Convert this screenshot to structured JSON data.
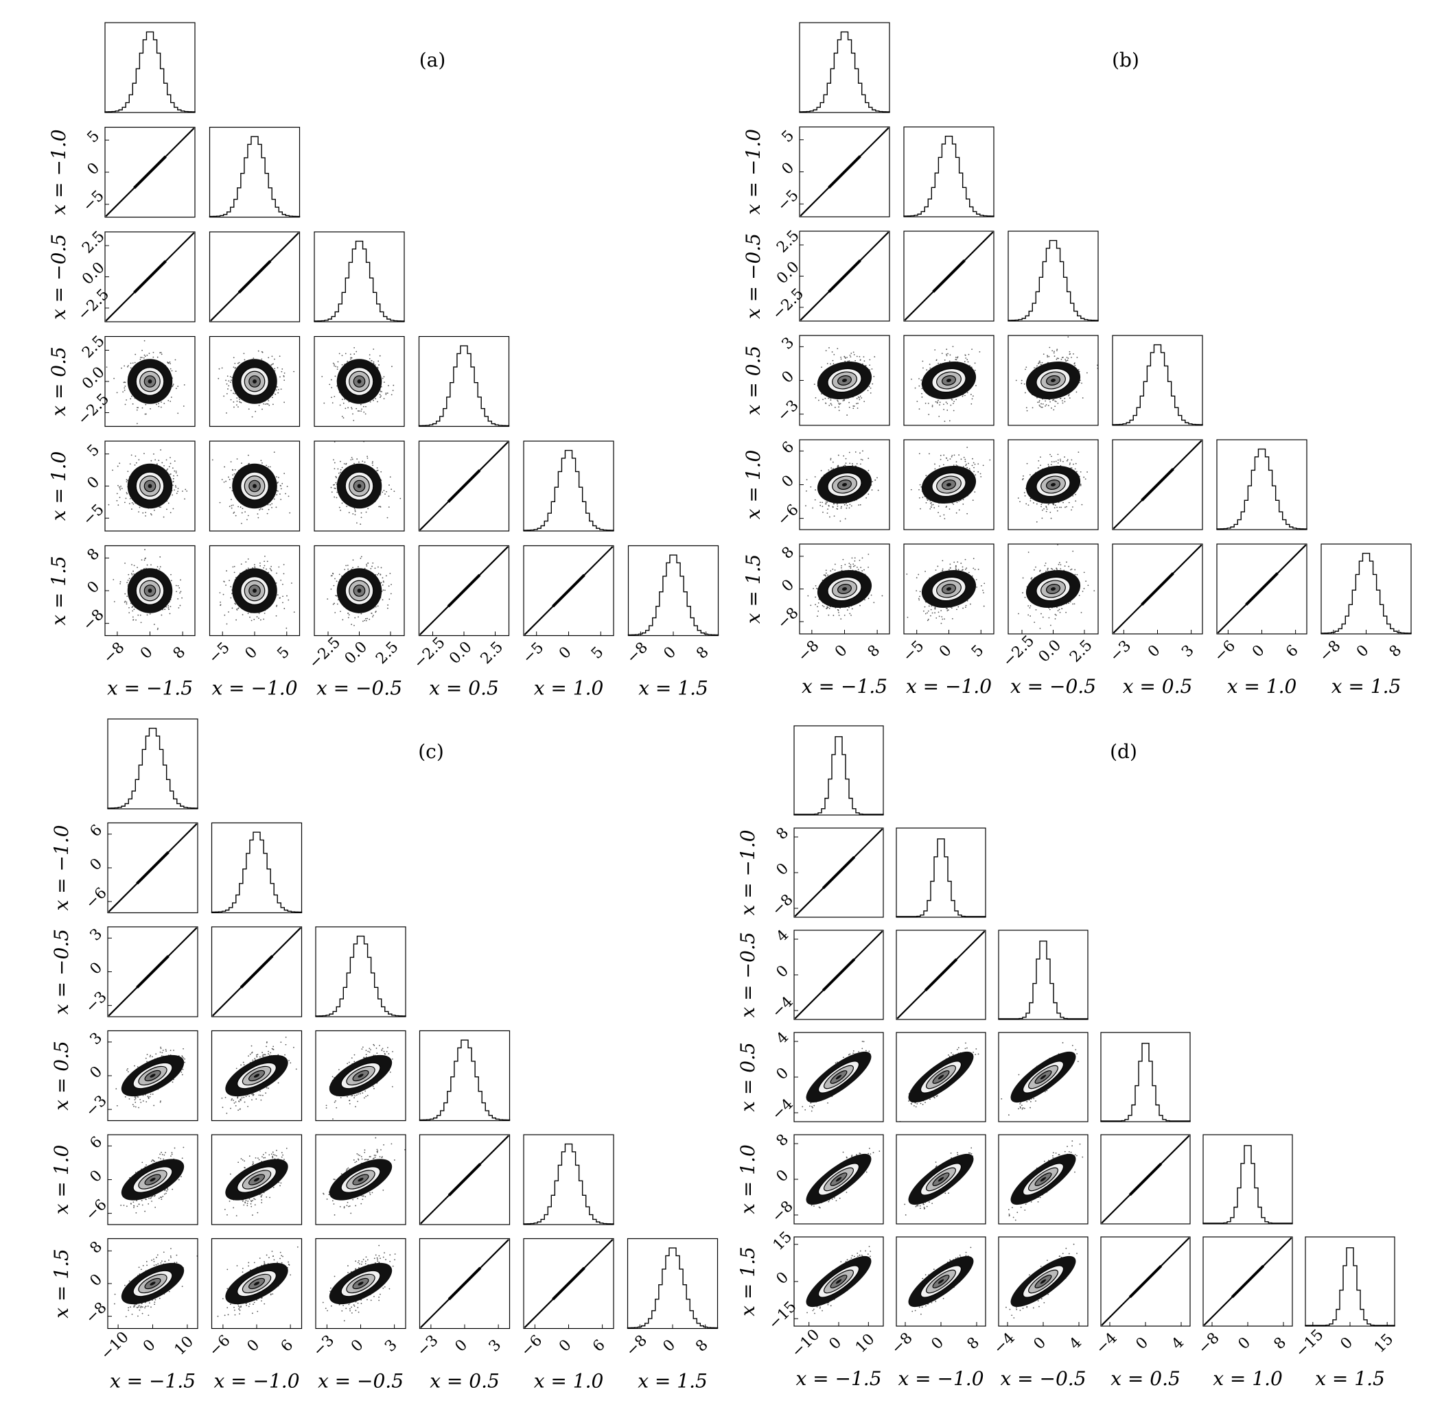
{
  "chart_data": [
    {
      "type": "corner",
      "panel_label": "(a)",
      "variables": [
        "x = −1.5",
        "x = −1.0",
        "x = −0.5",
        "x = 0.5",
        "x = 1.0",
        "x = 1.5"
      ],
      "axis_limits": [
        [
          -11,
          11
        ],
        [
          -7,
          7
        ],
        [
          -3.6,
          3.6
        ],
        [
          -3.6,
          3.6
        ],
        [
          -7,
          7
        ],
        [
          -11,
          11
        ]
      ],
      "ticks": [
        {
          "values": [
            -8,
            0,
            8
          ],
          "labels": [
            "−8",
            "0",
            "8"
          ]
        },
        {
          "values": [
            -5,
            0,
            5
          ],
          "labels": [
            "−5",
            "0",
            "5"
          ]
        },
        {
          "values": [
            -2.5,
            0,
            2.5
          ],
          "labels": [
            "−2.5",
            "0.0",
            "2.5"
          ]
        },
        {
          "values": [
            -2.5,
            0,
            2.5
          ],
          "labels": [
            "−2.5",
            "0.0",
            "2.5"
          ]
        },
        {
          "values": [
            -5,
            0,
            5
          ],
          "labels": [
            "−5",
            "0",
            "5"
          ]
        },
        {
          "values": [
            -8,
            0,
            8
          ],
          "labels": [
            "−8",
            "0",
            "8"
          ]
        }
      ],
      "correlation_groups": [
        [
          0,
          1,
          2
        ],
        [
          3,
          4,
          5
        ]
      ],
      "cross_group_correlation": 0.0,
      "histogram_shape": "gaussian"
    },
    {
      "type": "corner",
      "panel_label": "(b)",
      "variables": [
        "x = −1.5",
        "x = −1.0",
        "x = −0.5",
        "x = 0.5",
        "x = 1.0",
        "x = 1.5"
      ],
      "axis_limits": [
        [
          -11,
          11
        ],
        [
          -7,
          7
        ],
        [
          -3.6,
          3.6
        ],
        [
          -4,
          4
        ],
        [
          -8,
          8
        ],
        [
          -11,
          11
        ]
      ],
      "ticks": [
        {
          "values": [
            -8,
            0,
            8
          ],
          "labels": [
            "−8",
            "0",
            "8"
          ]
        },
        {
          "values": [
            -5,
            0,
            5
          ],
          "labels": [
            "−5",
            "0",
            "5"
          ]
        },
        {
          "values": [
            -2.5,
            0,
            2.5
          ],
          "labels": [
            "−2.5",
            "0.0",
            "2.5"
          ]
        },
        {
          "values": [
            -3,
            0,
            3
          ],
          "labels": [
            "−3",
            "0",
            "3"
          ]
        },
        {
          "values": [
            -6,
            0,
            6
          ],
          "labels": [
            "−6",
            "0",
            "6"
          ]
        },
        {
          "values": [
            -8,
            0,
            8
          ],
          "labels": [
            "−8",
            "0",
            "8"
          ]
        }
      ],
      "correlation_groups": [
        [
          0,
          1,
          2
        ],
        [
          3,
          4,
          5
        ]
      ],
      "cross_group_correlation": 0.25,
      "histogram_shape": "gaussian"
    },
    {
      "type": "corner",
      "panel_label": "(c)",
      "variables": [
        "x = −1.5",
        "x = −1.0",
        "x = −0.5",
        "x = 0.5",
        "x = 1.0",
        "x = 1.5"
      ],
      "axis_limits": [
        [
          -13,
          13
        ],
        [
          -8,
          8
        ],
        [
          -4,
          4
        ],
        [
          -4,
          4
        ],
        [
          -8,
          8
        ],
        [
          -11,
          11
        ]
      ],
      "ticks": [
        {
          "values": [
            -10,
            0,
            10
          ],
          "labels": [
            "−10",
            "0",
            "10"
          ]
        },
        {
          "values": [
            -6,
            0,
            6
          ],
          "labels": [
            "−6",
            "0",
            "6"
          ]
        },
        {
          "values": [
            -3,
            0,
            3
          ],
          "labels": [
            "−3",
            "0",
            "3"
          ]
        },
        {
          "values": [
            -3,
            0,
            3
          ],
          "labels": [
            "−3",
            "0",
            "3"
          ]
        },
        {
          "values": [
            -6,
            0,
            6
          ],
          "labels": [
            "−6",
            "0",
            "6"
          ]
        },
        {
          "values": [
            -8,
            0,
            8
          ],
          "labels": [
            "−8",
            "0",
            "8"
          ]
        }
      ],
      "correlation_groups": [
        [
          0,
          1,
          2
        ],
        [
          3,
          4,
          5
        ]
      ],
      "cross_group_correlation": 0.6,
      "histogram_shape": "gaussian"
    },
    {
      "type": "corner",
      "panel_label": "(d)",
      "variables": [
        "x = −1.5",
        "x = −1.0",
        "x = −0.5",
        "x = 0.5",
        "x = 1.0",
        "x = 1.5"
      ],
      "axis_limits": [
        [
          -15,
          15
        ],
        [
          -10,
          10
        ],
        [
          -5,
          5
        ],
        [
          -5,
          5
        ],
        [
          -10,
          10
        ],
        [
          -18,
          18
        ]
      ],
      "ticks": [
        {
          "values": [
            -10,
            0,
            10
          ],
          "labels": [
            "−10",
            "0",
            "10"
          ]
        },
        {
          "values": [
            -8,
            0,
            8
          ],
          "labels": [
            "−8",
            "0",
            "8"
          ]
        },
        {
          "values": [
            -4,
            0,
            4
          ],
          "labels": [
            "−4",
            "0",
            "4"
          ]
        },
        {
          "values": [
            -4,
            0,
            4
          ],
          "labels": [
            "−4",
            "0",
            "4"
          ]
        },
        {
          "values": [
            -8,
            0,
            8
          ],
          "labels": [
            "−8",
            "0",
            "8"
          ]
        },
        {
          "values": [
            -15,
            0,
            15
          ],
          "labels": [
            "−15",
            "0",
            "15"
          ]
        }
      ],
      "correlation_groups": [
        [
          0,
          1,
          2
        ],
        [
          3,
          4,
          5
        ]
      ],
      "cross_group_correlation": 0.85,
      "histogram_shape": "peaked"
    }
  ]
}
